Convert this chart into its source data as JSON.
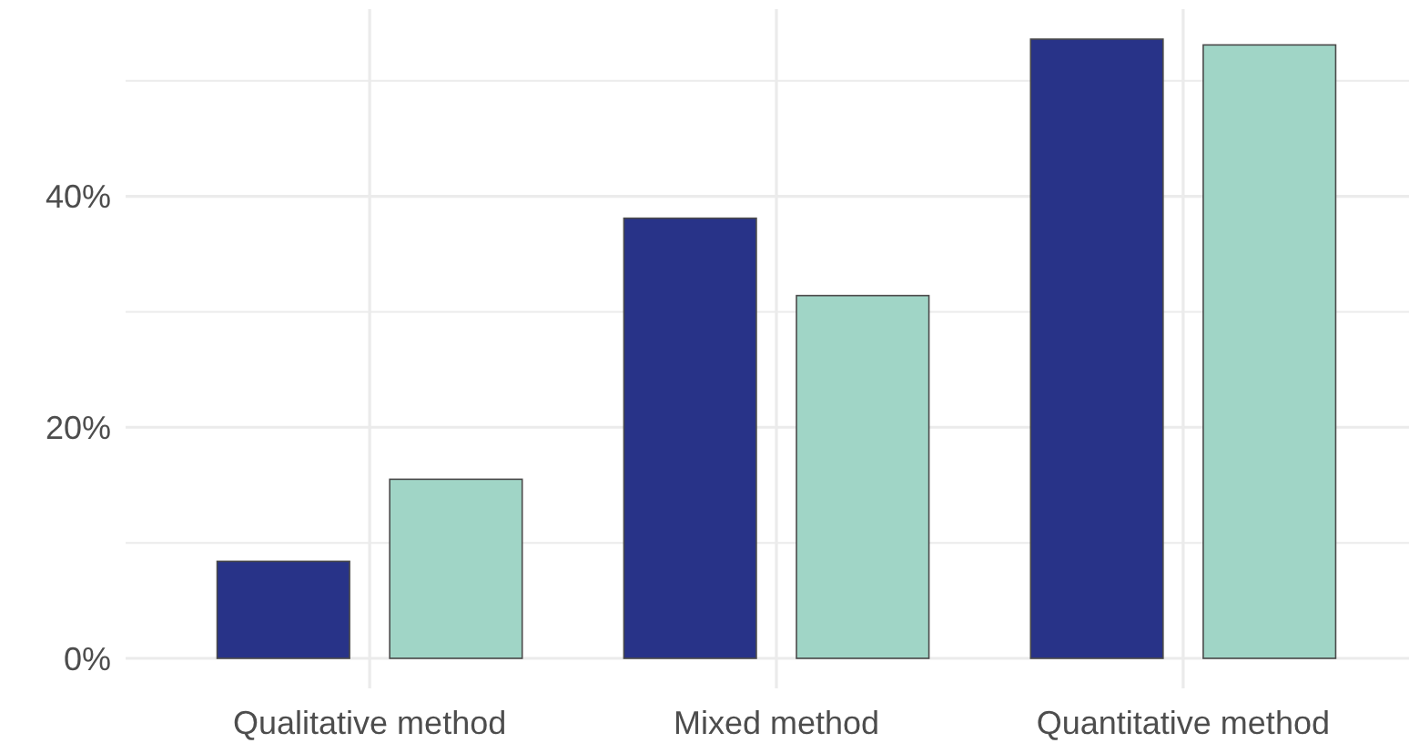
{
  "chart_data": {
    "type": "bar",
    "categories": [
      "Qualitative method",
      "Mixed method",
      "Quantitative method"
    ],
    "series": [
      {
        "color": "#283388",
        "values": [
          8.4,
          38.1,
          53.6
        ]
      },
      {
        "color": "#a0d5c6",
        "values": [
          15.5,
          31.4,
          53.1
        ]
      }
    ],
    "ylim": [
      -2.6,
      56.2
    ],
    "yticks": [
      {
        "value": 0,
        "label": "0%"
      },
      {
        "value": 10,
        "label": null
      },
      {
        "value": 20,
        "label": "20%"
      },
      {
        "value": 30,
        "label": null
      },
      {
        "value": 40,
        "label": "40%"
      },
      {
        "value": 50,
        "label": null
      }
    ],
    "grid": true
  }
}
